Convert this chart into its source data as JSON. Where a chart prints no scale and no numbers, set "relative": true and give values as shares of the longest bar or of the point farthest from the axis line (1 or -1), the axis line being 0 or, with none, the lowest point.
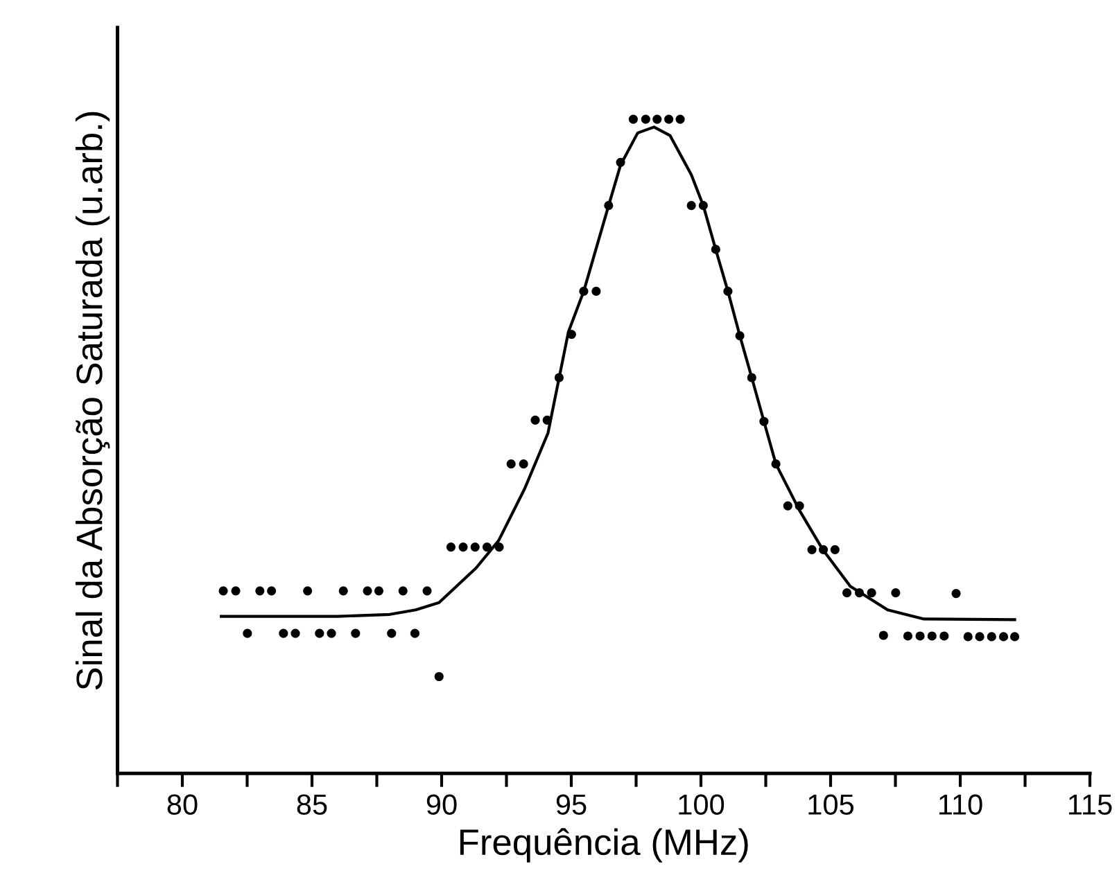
{
  "chart_data": {
    "type": "scatter",
    "relative": true,
    "xlabel": "Frequência (MHz)",
    "ylabel": "Sinal da Absorção Saturada (u.arb.)",
    "xlim": [
      77.5,
      115
    ],
    "xticks": [
      {
        "value": 77.5,
        "label": null
      },
      80,
      {
        "value": 82.5,
        "label": null
      },
      85,
      {
        "value": 87.5,
        "label": null
      },
      90,
      {
        "value": 92.5,
        "label": null
      },
      95,
      {
        "value": 97.5,
        "label": null
      },
      100,
      {
        "value": 102.5,
        "label": null
      },
      105,
      {
        "value": 107.5,
        "label": null
      },
      110,
      {
        "value": 112.5,
        "label": null
      },
      115
    ],
    "grid": false,
    "tick_labels": "x",
    "series": [
      {
        "color": "#000000",
        "marker": "circle",
        "x": [
          81.58,
          82.06,
          82.51,
          82.99,
          83.44,
          83.9,
          84.36,
          84.83,
          85.29,
          85.75,
          86.21,
          86.68,
          87.14,
          87.58,
          88.07,
          88.51,
          88.97,
          89.44,
          89.9,
          90.36,
          90.83,
          91.29,
          91.75,
          92.22,
          92.68,
          93.16,
          93.61,
          94.07,
          94.53,
          95.01,
          95.48,
          95.96,
          96.44,
          96.9,
          97.39,
          97.87,
          98.31,
          98.76,
          99.2,
          99.63,
          100.09,
          100.57,
          101.04,
          101.5,
          101.96,
          102.43,
          102.89,
          103.35,
          103.8,
          104.28,
          104.72,
          105.17,
          105.63,
          106.11,
          106.58,
          107.04,
          107.51,
          107.98,
          108.45,
          108.91,
          109.38,
          109.84,
          110.3,
          110.75,
          111.21,
          111.67,
          112.1
        ],
        "values": [
          0.279,
          0.279,
          0.214,
          0.279,
          0.279,
          0.214,
          0.214,
          0.279,
          0.214,
          0.214,
          0.279,
          0.214,
          0.279,
          0.279,
          0.214,
          0.279,
          0.214,
          0.279,
          0.148,
          0.346,
          0.346,
          0.346,
          0.346,
          0.346,
          0.473,
          0.473,
          0.54,
          0.54,
          0.605,
          0.671,
          0.737,
          0.737,
          0.868,
          0.934,
          1.0,
          1.0,
          1.0,
          1.0,
          1.0,
          0.868,
          0.868,
          0.801,
          0.737,
          0.669,
          0.605,
          0.538,
          0.473,
          0.409,
          0.409,
          0.342,
          0.342,
          0.342,
          0.276,
          0.276,
          0.276,
          0.211,
          0.276,
          0.21,
          0.21,
          0.21,
          0.21,
          0.275,
          0.209,
          0.209,
          0.209,
          0.209,
          0.209
        ]
      },
      {
        "type": "line",
        "color": "#000000",
        "marker": "none",
        "line_style": "solid",
        "x": [
          81.5,
          86,
          88,
          89,
          89.9,
          91.33,
          92.2,
          93.2,
          94.1,
          94.89,
          95.48,
          96.44,
          96.9,
          97.56,
          98.19,
          98.81,
          99.63,
          100.09,
          100.57,
          101.04,
          101.5,
          101.96,
          102.43,
          102.89,
          103.8,
          104.7,
          105.76,
          107.2,
          108.6,
          112.1
        ],
        "values": [
          0.24,
          0.24,
          0.243,
          0.25,
          0.261,
          0.314,
          0.356,
          0.435,
          0.52,
          0.675,
          0.737,
          0.868,
          0.93,
          0.979,
          0.988,
          0.975,
          0.915,
          0.868,
          0.801,
          0.737,
          0.669,
          0.605,
          0.538,
          0.473,
          0.402,
          0.342,
          0.286,
          0.25,
          0.236,
          0.235
        ]
      }
    ]
  }
}
